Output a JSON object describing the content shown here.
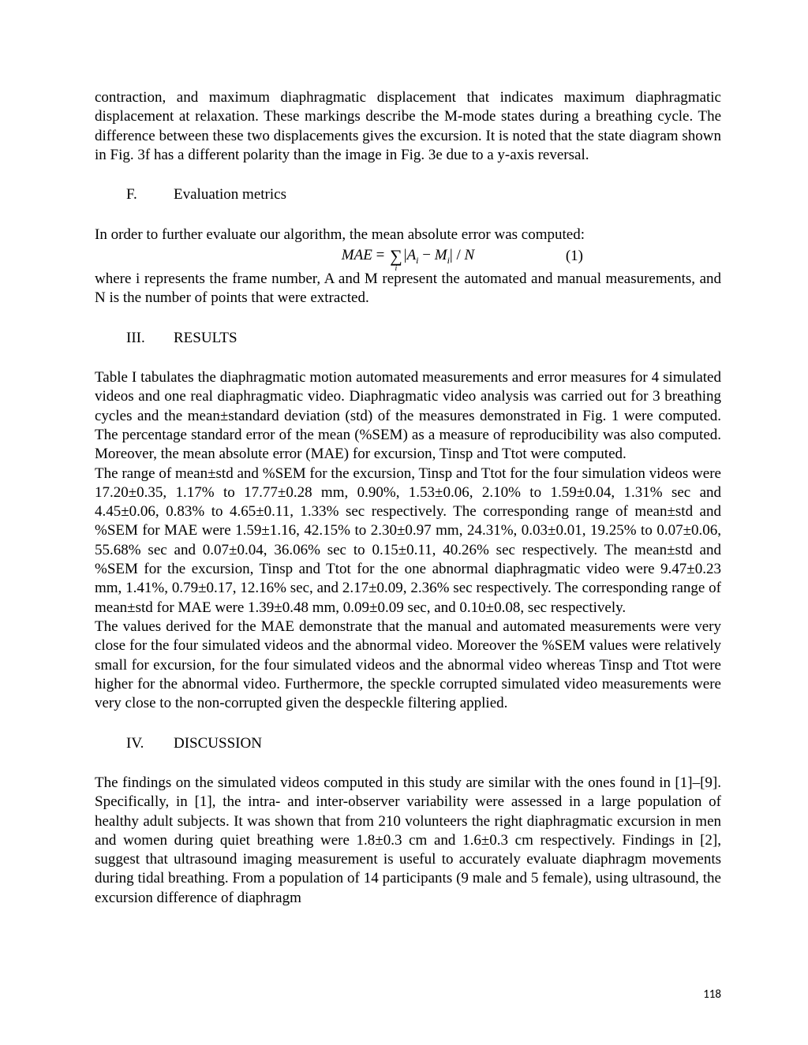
{
  "intro_para": "contraction, and maximum diaphragmatic displacement that indicates maximum diaphragmatic displacement at relaxation. These markings describe the M-mode states during a breathing cycle. The difference between these two displacements gives the excursion. It is noted that the state diagram shown in Fig. 3f has a different polarity than the image in Fig. 3e due to a y-axis reversal.",
  "section_F": {
    "label": "F.",
    "title": "Evaluation metrics"
  },
  "eval_intro": "In order to further evaluate our algorithm, the mean absolute error was computed:",
  "equation": {
    "lhs": "MAE",
    "eq": " = ",
    "sum_lower": "i",
    "abs_open": "|",
    "A": "A",
    "A_sub": "i",
    "minus": " − ",
    "M": "M",
    "M_sub": "i",
    "abs_close": "|",
    "over": " / ",
    "N": "N",
    "number": "(1)"
  },
  "eval_after": "where i represents the frame number, A and M represent the automated and manual measurements, and N is the number of points that were extracted.",
  "section_III": {
    "label": "III.",
    "title": "RESULTS"
  },
  "results_p1": "Table I tabulates the diaphragmatic motion automated measurements and error measures for 4 simulated videos and one real diaphragmatic video.  Diaphragmatic video analysis was carried out for 3 breathing cycles and the mean±standard deviation (std) of the measures demonstrated in Fig. 1 were computed. The percentage standard error of the mean (%SEM) as a measure of reproducibility was also computed.  Moreover, the mean absolute error (MAE) for excursion, Tinsp and Ttot were computed.",
  "results_p2": "The range of mean±std and %SEM for the excursion, Tinsp and Ttot for the four simulation videos were 17.20±0.35, 1.17% to 17.77±0.28 mm, 0.90%, 1.53±0.06, 2.10% to 1.59±0.04, 1.31% sec and 4.45±0.06, 0.83% to 4.65±0.11, 1.33% sec respectively. The corresponding range of mean±std and %SEM for MAE were 1.59±1.16, 42.15% to 2.30±0.97 mm, 24.31%, 0.03±0.01, 19.25% to 0.07±0.06,  55.68% sec and 0.07±0.04, 36.06% sec to 0.15±0.11, 40.26% sec respectively. The mean±std and %SEM for the excursion, Tinsp and Ttot for the one abnormal diaphragmatic video were 9.47±0.23 mm, 1.41%, 0.79±0.17, 12.16% sec, and 2.17±0.09, 2.36% sec respectively. The corresponding range of mean±std for MAE were 1.39±0.48  mm, 0.09±0.09 sec, and 0.10±0.08, sec respectively.",
  "results_p3": "The values derived for the MAE demonstrate that the manual and automated measurements were very close for the four simulated videos and the abnormal video.  Moreover the %SEM values were relatively small for excursion, for the four simulated videos and the abnormal video whereas Tinsp and Ttot were higher for the abnormal video.  Furthermore, the speckle corrupted simulated video measurements were very close to the non-corrupted given the despeckle filtering applied.",
  "section_IV": {
    "label": "IV.",
    "title": "DISCUSSION"
  },
  "discussion_p1": "The findings on the simulated videos computed in this study are similar with the ones found in [1]–[9]. Specifically, in [1], the intra- and inter-observer variability were assessed in a large population of healthy adult subjects. It was shown that from 210 volunteers the right diaphragmatic excursion in men and women during quiet breathing were 1.8±0.3 cm and 1.6±0.3 cm respectively. Findings in [2], suggest that ultrasound imaging measurement is useful to accurately evaluate diaphragm movements during tidal breathing. From a population of 14 participants (9 male and 5 female), using ultrasound, the excursion difference of diaphragm",
  "page_number": "118"
}
